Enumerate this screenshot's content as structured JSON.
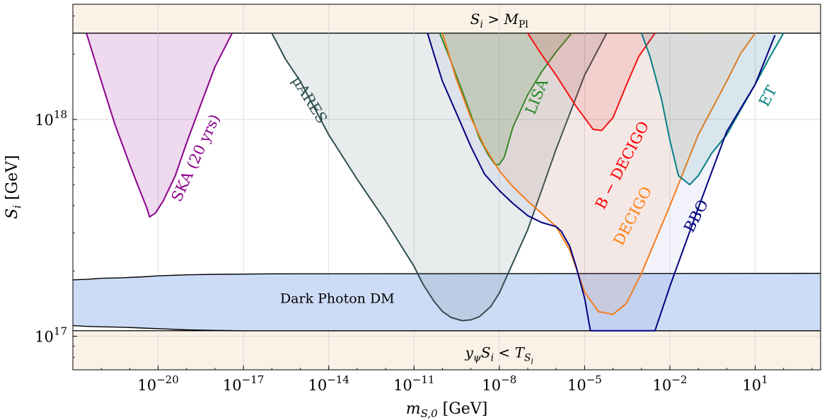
{
  "chart_data": {
    "type": "area",
    "xscale": "log",
    "yscale": "log",
    "xlim": [
      1e-23,
      2000
    ],
    "ylim": [
      7e+16,
      3.4e+18
    ],
    "grid": true,
    "xlabel_parts": {
      "base": "m",
      "sub": "S,0",
      "unit": " [GeV]"
    },
    "ylabel_parts": {
      "base": "S",
      "sub": "i",
      "unit": " [GeV]"
    },
    "x_ticks": [
      {
        "value": 1e-20,
        "base": "10",
        "exp": "−20"
      },
      {
        "value": 1e-17,
        "base": "10",
        "exp": "−17"
      },
      {
        "value": 1e-14,
        "base": "10",
        "exp": "−14"
      },
      {
        "value": 1e-11,
        "base": "10",
        "exp": "−11"
      },
      {
        "value": 1e-08,
        "base": "10",
        "exp": "−8"
      },
      {
        "value": 1e-05,
        "base": "10",
        "exp": "−5"
      },
      {
        "value": 0.01,
        "base": "10",
        "exp": "−2"
      },
      {
        "value": 10,
        "base": "10",
        "exp": "1"
      }
    ],
    "y_ticks": [
      {
        "value": 1e+17,
        "base": "10",
        "exp": "17"
      },
      {
        "value": 1e+18,
        "base": "10",
        "exp": "18"
      }
    ],
    "bands": [
      {
        "name": "upper",
        "y_from": 2.5e+18,
        "y_to": 3.4e+18,
        "color": "#faf2e7",
        "label_parts": [
          {
            "t": "S",
            "italic": true
          },
          {
            "t": "i",
            "sub": true,
            "italic": true
          },
          {
            "t": " > "
          },
          {
            "t": "M",
            "italic": true
          },
          {
            "t": "Pl",
            "sub": true
          }
        ],
        "label_at": [
          1e-08,
          2.9e+18
        ]
      },
      {
        "name": "lower",
        "y_from": 7e+16,
        "y_to": 1.06e+17,
        "color": "#faf2e7",
        "label_parts": [
          {
            "t": "y",
            "italic": true
          },
          {
            "t": "ψ",
            "sub": true,
            "italic": true
          },
          {
            "t": "S",
            "italic": true
          },
          {
            "t": "i",
            "sub": true,
            "italic": true
          },
          {
            "t": " < "
          },
          {
            "t": "T",
            "italic": true
          },
          {
            "t": "S",
            "sub": true,
            "italic": true
          },
          {
            "t": "i",
            "subsub": true,
            "italic": true
          }
        ],
        "label_at": [
          1e-08,
          8.4e+16
        ]
      }
    ],
    "dark_photon": {
      "label": "Dark Photon DM",
      "label_at": [
        2e-14,
        1.5e+17
      ],
      "color": "#c4d6f4",
      "top_x": [
        1e-23,
        3e-23,
        1e-22,
        5e-22,
        3e-21,
        1e-20,
        3e-20,
        1e-19,
        1e-18,
        1e-16,
        2000
      ],
      "top_y": [
        1.82e+17,
        1.83e+17,
        1.85e+17,
        1.86e+17,
        1.88e+17,
        1.9e+17,
        1.91e+17,
        1.92e+17,
        1.93e+17,
        1.94e+17,
        1.95e+17
      ],
      "bottom_x": [
        1e-23,
        3e-23,
        1e-22,
        6e-22,
        3e-21,
        2e-20,
        1e-19,
        5e-19,
        1e-17,
        2000
      ],
      "bottom_y": [
        1.12e+17,
        1.11e+17,
        1.105e+17,
        1.1e+17,
        1.09e+17,
        1.08e+17,
        1.07e+17,
        1.065e+17,
        1.06e+17,
        1.06e+17
      ]
    },
    "series": [
      {
        "name": "SKA (20 yrs)",
        "color": "#8b008b",
        "fill": "#8b008b",
        "fill_opacity": 0.15,
        "x": [
          3e-23,
          1e-22,
          3e-22,
          1e-21,
          2e-21,
          4e-21,
          5e-21,
          8e-21,
          1.5e-20,
          4e-20,
          1e-19,
          3e-19,
          1e-18,
          4e-18
        ],
        "y": [
          2.5e+18,
          1.5e+18,
          9.5e+17,
          6.2e+17,
          4.9e+17,
          3.9e+17,
          3.55e+17,
          3.7e+17,
          4.2e+17,
          5.5e+17,
          7.8e+17,
          1.15e+18,
          1.75e+18,
          2.5e+18
        ],
        "label_at": [
          3e-19,
          6.5e+17
        ],
        "label_angle": -65
      },
      {
        "name": "μARES",
        "color": "#2f4f4f",
        "fill": "#2f4f4f",
        "fill_opacity": 0.11,
        "x": [
          1e-16,
          3e-16,
          1e-15,
          1e-14,
          1e-13,
          1e-12,
          1e-11,
          2e-11,
          5e-11,
          1e-10,
          2e-10,
          5e-10,
          1e-09,
          2e-09,
          5e-09,
          1e-08,
          1e-07,
          1e-06,
          1e-05,
          6e-05
        ],
        "y": [
          2.5e+18,
          1.9e+18,
          1.5e+18,
          8.5e+17,
          5.3e+17,
          3.4e+17,
          2.1e+17,
          1.75e+17,
          1.45e+17,
          1.3e+17,
          1.22e+17,
          1.18e+17,
          1.19e+17,
          1.23e+17,
          1.37e+17,
          1.58e+17,
          3.1e+17,
          7.3e+17,
          1.6e+18,
          2.5e+18
        ],
        "label_at": [
          1.5e-15,
          1.2e+18
        ],
        "label_angle": 58
      },
      {
        "name": "LISA",
        "color": "#228b22",
        "fill": "#228b22",
        "fill_opacity": 0.15,
        "x": [
          8e-11,
          2e-10,
          5e-10,
          1e-09,
          2e-09,
          4e-09,
          7e-09,
          1e-08,
          1.5e-08,
          3e-08,
          1e-07,
          3e-07,
          1e-06,
          3.5e-06
        ],
        "y": [
          2.5e+18,
          1.85e+18,
          1.35e+18,
          1.05e+18,
          8.2e+17,
          6.9e+17,
          6.2e+17,
          6.2e+17,
          6.7e+17,
          9.2e+17,
          1.3e+18,
          1.65e+18,
          2.05e+18,
          2.5e+18
        ],
        "label_at": [
          3e-07,
          1.25e+18
        ],
        "label_angle": -68
      },
      {
        "name": "B − DECIGO",
        "color": "#ff0000",
        "fill": "#ff0000",
        "fill_opacity": 0.11,
        "x": [
          1e-07,
          3e-07,
          1e-06,
          5e-06,
          2e-05,
          4e-05,
          0.0001,
          0.0003,
          0.0008,
          0.003
        ],
        "y": [
          2.5e+18,
          2e+18,
          1.6e+18,
          1.15e+18,
          9e+17,
          8.9e+17,
          1.02e+18,
          1.45e+18,
          1.95e+18,
          2.5e+18
        ],
        "label_at": [
          0.0003,
          6e+17
        ],
        "label_angle": -62
      },
      {
        "name": "DECIGO",
        "color": "#ff7f0e",
        "fill": "#ff7f0e",
        "fill_opacity": 0.09,
        "x": [
          1e-10,
          3e-10,
          1e-09,
          3e-09,
          1e-08,
          3e-08,
          1e-07,
          3e-07,
          1e-06,
          3e-06,
          1e-05,
          3e-05,
          0.0001,
          0.0003,
          0.001,
          0.01,
          0.1,
          1,
          3,
          10
        ],
        "y": [
          2.5e+18,
          1.55e+18,
          1.02e+18,
          7.5e+17,
          5.8e+17,
          4.9e+17,
          4.2e+17,
          3.7e+17,
          3.2e+17,
          2.5e+17,
          1.6e+17,
          1.3e+17,
          1.26e+17,
          1.42e+17,
          1.95e+17,
          4e+17,
          8.5e+17,
          1.5e+18,
          2e+18,
          2.5e+18
        ],
        "label_at": [
          0.0007,
          3.5e+17
        ],
        "label_angle": -62
      },
      {
        "name": "ET",
        "color": "#008080",
        "fill": "#008080",
        "fill_opacity": 0.11,
        "x": [
          0.001,
          0.002,
          0.005,
          0.01,
          0.02,
          0.05,
          0.1,
          0.3,
          1,
          3,
          10,
          30,
          100
        ],
        "y": [
          2.5e+18,
          1.95e+18,
          1.25e+18,
          8e+17,
          5.5e+17,
          5e+17,
          5.5e+17,
          7e+17,
          8.5e+17,
          1.1e+18,
          1.45e+18,
          1.9e+18,
          2.5e+18
        ],
        "label_at": [
          40,
          1.25e+18
        ],
        "label_angle": -62
      },
      {
        "name": "BBO",
        "color": "#000080",
        "fill": "#6a6acd",
        "fill_opacity": 0.08,
        "x": [
          3e-11,
          5e-11,
          1e-10,
          3e-10,
          1e-09,
          3e-09,
          1e-08,
          3e-08,
          1e-07,
          3e-07,
          1e-06,
          1.5e-06,
          3e-06,
          5e-06,
          1e-05,
          1.6e-05,
          0.003,
          0.01,
          0.1,
          1,
          10,
          50
        ],
        "y": [
          2.5e+18,
          2e+18,
          1.5e+18,
          1.08e+18,
          7.5e+17,
          5.6e+17,
          4.7e+17,
          4.1e+17,
          3.6e+17,
          3.35e+17,
          3.2e+17,
          3.05e+17,
          2.6e+17,
          2.1e+17,
          1.5e+17,
          1.06e+17,
          1.06e+17,
          1.7e+17,
          3.9e+17,
          8.8e+17,
          1.45e+18,
          2.45e+18
        ],
        "label_at": [
          0.12,
          3.5e+17
        ],
        "label_angle": -62
      }
    ]
  }
}
